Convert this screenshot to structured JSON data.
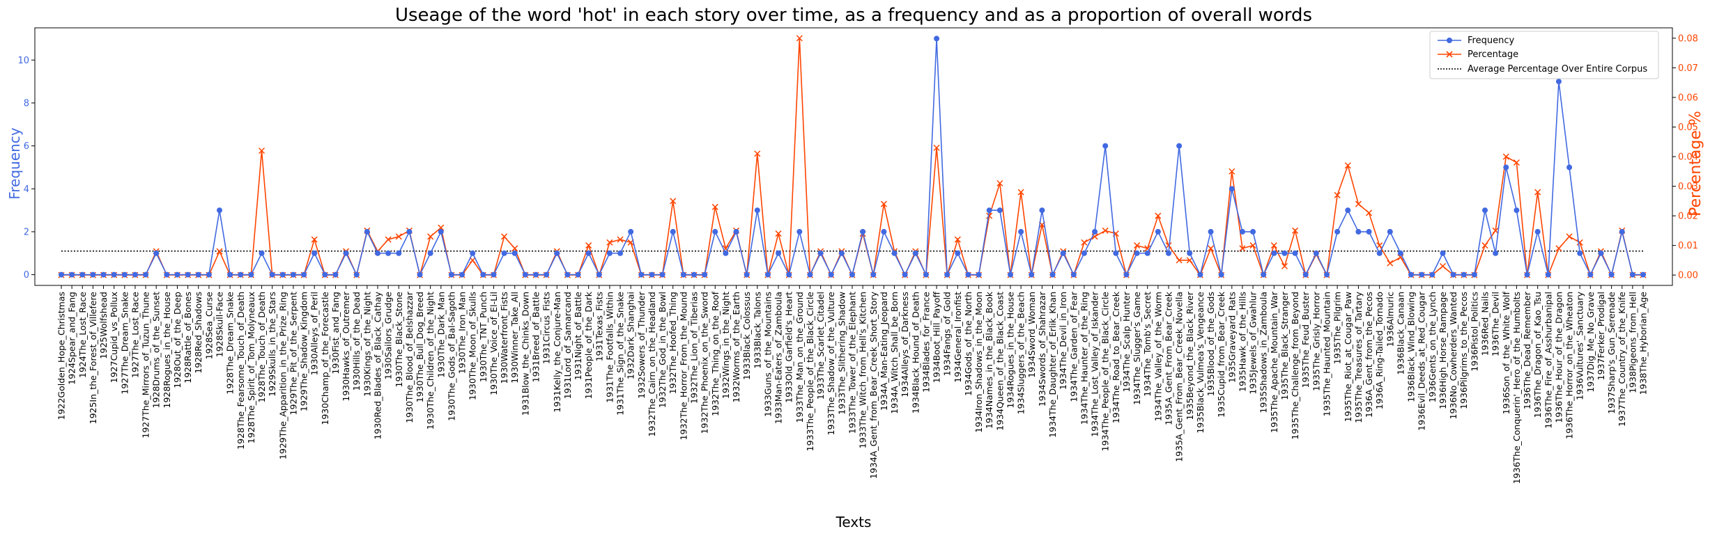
{
  "chart_data": {
    "type": "line",
    "title": "Useage of the word 'hot' in each story over time, as a frequency and as a proportion of overall words",
    "xlabel": "Texts",
    "ylabel_left": "Frequency",
    "ylabel_right": "Percentage %",
    "ylim_left": [
      -0.5,
      11.5
    ],
    "ylim_right": [
      -0.0035,
      0.0835
    ],
    "yticks_left": [
      0,
      2,
      4,
      6,
      8,
      10
    ],
    "yticks_right": [
      0.0,
      0.01,
      0.02,
      0.03,
      0.04,
      0.05,
      0.06,
      0.07,
      0.08
    ],
    "legend_position": "upper-right",
    "colors": {
      "frequency": "#4169e1",
      "percentage": "#ff4500",
      "average": "#000000"
    },
    "categories": [
      "1922Golden_Hope_Christmas",
      "1924Spear_and_Fang",
      "1924The_Lost_Race",
      "1925In_the_Forest_of_Villefere",
      "1925Wolfshead",
      "1927Cupid_vs_Pollux",
      "1927The_Dream_Snake",
      "1927The_Lost_Race",
      "1927The_Mirrors_of_Tuzun_Thune",
      "1928Drums_of_the_Sunset",
      "1928Rogues_in_the_House",
      "1928Out_of_the_Deep",
      "1928Rattle_of_Bones",
      "1928Red_Shadows",
      "1928Sea_Curse",
      "1928Skull-Face",
      "1928The_Dream_Snake",
      "1928The_Fearsome_Touch_of_Death",
      "1928The_Spirit_of_Tom_Molyneaux",
      "1928The_Touch_of_Death",
      "1929Skulls_in_the_Stars",
      "1929The_Apparition_in_the_Prize_Ring",
      "1929The_Pit_of_the_Serpent",
      "1929The_Shadow_Kingdom",
      "1930Alleys_of_Peril",
      "1930Champ_of_the_Forecastle",
      "1930Fist_and_Fang",
      "1930Hawks_of_Outremer",
      "1930Hills_of_the_Dead",
      "1930Kings_of_the_Night",
      "1930Red_Blades_of_Black_Cathay",
      "1930Sailors_Grudge",
      "1930The_Black_Stone",
      "1930The_Blood_of_Belshazzar",
      "1930The_Bull_Dog_Breed",
      "1930The_Children_of_the_Night",
      "1930The_Dark_Man",
      "1930The_Gods_of_Bal-Sagoth",
      "1930The_Iron_Man",
      "1930The_Moon_of_Skulls",
      "1930The_TNT_Punch",
      "1930The_Voice_of_El-Lil",
      "1930Waterfront_Fists",
      "1930Winner_Take_All",
      "1931Blow_the_Chinks_Down",
      "1931Breed_of_Battle",
      "1931Circus_Fists",
      "1931Kelly_the_Conjure-Man",
      "1931Lord_of_Samarcand",
      "1931Night_of_Battle",
      "1931People_of_the_Dark",
      "1931Texas_Fists",
      "1931The_Footfalls_Within",
      "1931The_Sign_of_the_Snake",
      "1932Dark_Shanghai",
      "1932Sowers_of_Thunder",
      "1932The_Cairn_on_the_Headland",
      "1932The_God_in_the_Bowl",
      "1932The_Hoofed_Thing",
      "1932The_Horror_From_the_Mound",
      "1932The_Lion_of_Tiberias",
      "1932The_Phoenix_on_the_Sword",
      "1932The_Thing_on_the_Roof",
      "1932Wings_in_the_Night",
      "1932Worms_of_the_Earth",
      "1933Black_Colossus",
      "1933Black_Talons",
      "1933Guns_of_the_Mountains",
      "1933Man-Eaters_of_Zamboula",
      "1933Old_Garfield's_Heart",
      "1933The_Man_on_the_Ground",
      "1933The_People_of_the_Black_Circle",
      "1933The_Scarlet_Citadel",
      "1933The_Shadow_of_the_Vulture",
      "1933The_Slithering_Shadow",
      "1933The_Tower_of_the_Elephant",
      "1933The_Witch_from_Hell's_Kitchen",
      "1934A_Gent_from_Bear_Creek_Short_Story",
      "1934A_Man-Eating_Jeopard",
      "1934A_Witch_Shall_be_Born",
      "1934Alleys_of_Darkness",
      "1934Black_Hound_of_Death",
      "1934Blades_for_France",
      "1934Boot_Hill_Payoff",
      "1934Fangs_of_Gold",
      "1934General_Ironfist",
      "1934Gods_of_the_North",
      "1934Iron_Shadows_in_the_Moon",
      "1934Names_in_the_Black_Book",
      "1934Queen_of_the_Black_Coast",
      "1934Rogues_in_the_House",
      "1934Sluggers_of_the_Beach",
      "1934Sword_Woman",
      "1934Swords_of_Shahrazar",
      "1934The_Daughter_of_Erlik_Khan",
      "1934The_Devil_in_Iron",
      "1934The_Garden_of_Fear",
      "1934The_Haunter_of_the_Ring",
      "1934The_Lost_Valley_of_Iskander",
      "1934The_People_of_the_Black_Circle",
      "1934The_Road_to_Bear_Creek",
      "1934The_Scalp_Hunter",
      "1934The_Slugger's_Game",
      "1934The_Tomb's_Secret",
      "1934The_Valley_of_the_Worm",
      "1935A_Gent_From_Bear_Creek",
      "1935A_Gent_From_Bear_Creek_Novella",
      "1935Beyond_the_Black_River",
      "1935Black_Vulmea's_Vengeance",
      "1935Blood_of_the_Gods",
      "1935Cupid_from_Bear_Creek",
      "1935Graveyard_Rats",
      "1935Hawk_of_the_Hills",
      "1935Jewels_of_Gwahlur",
      "1935Shadows_in_Zamboula",
      "1935The_Apache_Mountain_War",
      "1935The_Black_Stranger",
      "1935The_Challenge_from_Beyond",
      "1935The_Feud_Buster",
      "1935The_Grisly_Horror",
      "1935The_Haunted_Mountain",
      "1935The_Pilgrim",
      "1935The_Riot_at_Cougar_Paw",
      "1935The_Treasures_of_Tartary",
      "1936A_Gent_from_the_Pecos",
      "1936A_Ring-Tailed_Tornado",
      "1936Almuric",
      "1936Black_Canaan",
      "1936Black_Wind_Blowing",
      "1936Evil_Deeds_at_Red_Cougar",
      "1936Gents_on_the_Lynch",
      "1936High_Horse_Rampage",
      "1936No_Cowherders_Wanted",
      "1936Pilgrims_to_the_Pecos",
      "1936Pistol_Politics",
      "1936Red_Nails",
      "1936The_Devil",
      "1936Son_of_the_White_Wolf",
      "1936The_Conquerin'_Hero_of_the_Humbolts",
      "1936The_Dead_Remember",
      "1936The_Dragon_of_Kao_Tsu",
      "1936The_Fire_of_Asshurbanipal",
      "1936The_Hour_of_the_Dragon",
      "1936The_Horror_on_the_Wheaton",
      "1936Vultures'_Sanctuary",
      "1937Dig_Me_No_Grave",
      "1937Ferker_Prodigal",
      "1937Sharp's_Gun_Serenade",
      "1937The_Country_of_the_Knife",
      "1938Pigeons_from_Hell",
      "1938The_Hyborian_Age"
    ],
    "series": [
      {
        "name": "Frequency",
        "axis": "left",
        "marker": "circle",
        "values": [
          0,
          0,
          0,
          0,
          0,
          0,
          0,
          0,
          0,
          1,
          0,
          0,
          0,
          0,
          0,
          3,
          0,
          0,
          0,
          1,
          0,
          0,
          0,
          0,
          1,
          0,
          0,
          1,
          0,
          2,
          1,
          1,
          1,
          2,
          0,
          1,
          2,
          0,
          0,
          1,
          0,
          0,
          1,
          1,
          0,
          0,
          0,
          1,
          0,
          0,
          1,
          0,
          1,
          1,
          2,
          0,
          0,
          0,
          2,
          0,
          0,
          0,
          2,
          1,
          2,
          0,
          3,
          0,
          1,
          0,
          2,
          0,
          1,
          0,
          1,
          0,
          2,
          0,
          2,
          1,
          0,
          1,
          0,
          11,
          0,
          1,
          0,
          0,
          3,
          3,
          0,
          2,
          0,
          3,
          0,
          1,
          0,
          1,
          2,
          6,
          1,
          0,
          1,
          1,
          2,
          1,
          6,
          1,
          0,
          2,
          0,
          4,
          2,
          2,
          0,
          1,
          1,
          1,
          0,
          1,
          0,
          2,
          3,
          2,
          2,
          1,
          2,
          1,
          0,
          0,
          0,
          1,
          0,
          0,
          0,
          3,
          1,
          5,
          3,
          0,
          2,
          0,
          9,
          5,
          1,
          0,
          1,
          0,
          2,
          0,
          0
        ]
      },
      {
        "name": "Percentage",
        "axis": "right",
        "marker": "x",
        "values": [
          0,
          0,
          0,
          0,
          0,
          0,
          0,
          0,
          0,
          0.008,
          0,
          0,
          0,
          0,
          0,
          0.008,
          0,
          0,
          0,
          0.042,
          0,
          0,
          0,
          0,
          0.012,
          0,
          0,
          0.008,
          0,
          0.015,
          0.008,
          0.012,
          0.013,
          0.015,
          0,
          0.013,
          0.016,
          0,
          0,
          0.005,
          0,
          0,
          0.013,
          0.009,
          0,
          0,
          0,
          0.008,
          0,
          0,
          0.01,
          0,
          0.011,
          0.012,
          0.011,
          0,
          0,
          0,
          0.025,
          0,
          0,
          0,
          0.023,
          0.009,
          0.015,
          0,
          0.041,
          0,
          0.014,
          0,
          0.08,
          0,
          0.008,
          0,
          0.008,
          0,
          0.014,
          0,
          0.024,
          0.008,
          0,
          0.008,
          0,
          0.043,
          0,
          0.012,
          0,
          0,
          0.02,
          0.031,
          0,
          0.028,
          0,
          0.017,
          0,
          0.008,
          0,
          0.011,
          0.013,
          0.015,
          0.014,
          0,
          0.01,
          0.009,
          0.02,
          0.01,
          0.005,
          0.005,
          0,
          0.009,
          0,
          0.035,
          0.009,
          0.01,
          0,
          0.01,
          0.003,
          0.015,
          0,
          0.007,
          0,
          0.027,
          0.037,
          0.024,
          0.021,
          0.01,
          0.004,
          0.006,
          0,
          0,
          0,
          0.003,
          0,
          0,
          0,
          0.01,
          0.015,
          0.04,
          0.038,
          0,
          0.028,
          0,
          0.009,
          0.013,
          0.011,
          0,
          0.008,
          0,
          0.015,
          0,
          0
        ]
      },
      {
        "name": "Average Percentage Over Entire Corpus",
        "axis": "right",
        "style": "dotted",
        "value": 0.0081
      }
    ]
  }
}
